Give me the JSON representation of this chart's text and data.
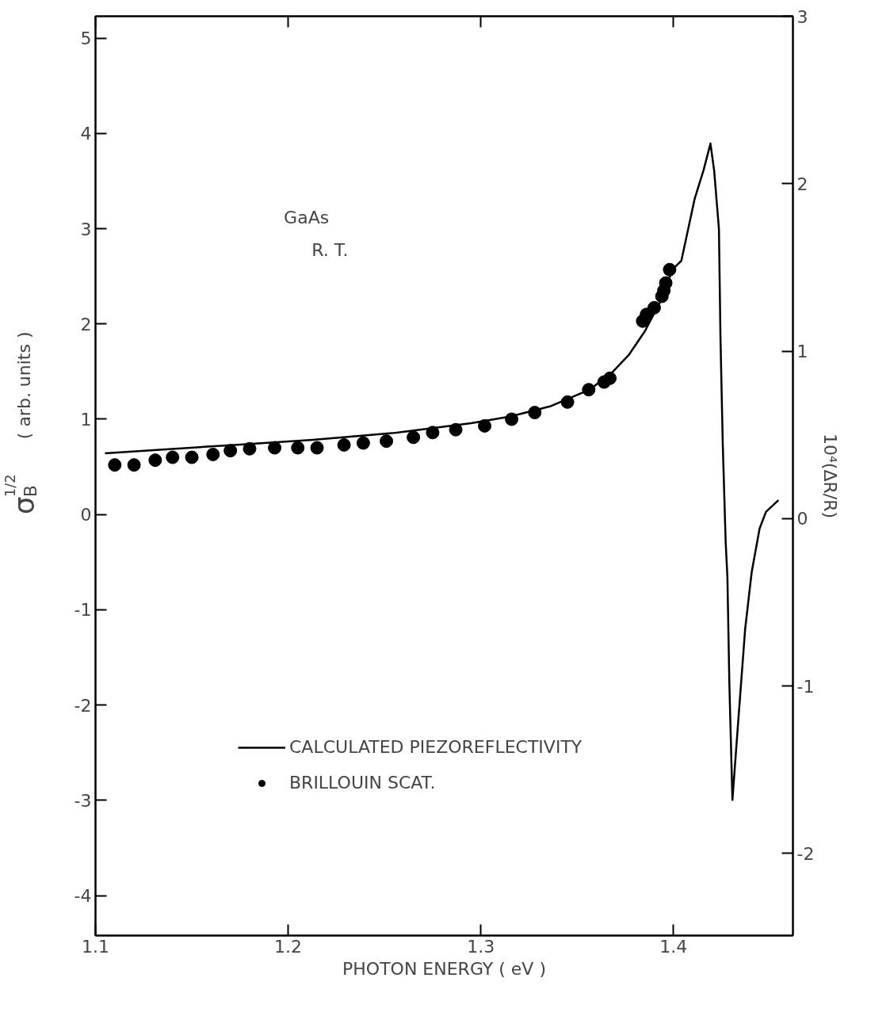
{
  "chart_data": {
    "type": "scatter",
    "xlabel": "PHOTON ENERGY ( eV )",
    "ylabel": "σ$_{B}$$^{1/2}$ ( arb. units )",
    "y2label": "10⁴(ΔR/R)",
    "annotations": [
      "GaAs",
      "R. T."
    ],
    "xlim": [
      1.1,
      1.462
    ],
    "xticks": [
      {
        "value": 1.1,
        "label": "1.1"
      },
      {
        "value": 1.2,
        "label": "1.2"
      },
      {
        "value": 1.3,
        "label": "1.3"
      },
      {
        "value": 1.4,
        "label": "1.4"
      }
    ],
    "ylim": [
      -4.42,
      5.23
    ],
    "yticks": [
      -4,
      -3,
      -2,
      -1,
      0,
      1,
      2,
      3,
      4,
      5
    ],
    "y2lim": [
      -2.49,
      3.0
    ],
    "y2ticks": [
      -2,
      -1,
      0,
      1,
      2,
      3
    ],
    "grid": false,
    "legend": "bottom left",
    "series": [
      {
        "name": "CALCULATED PIEZOREFLECTIVITY",
        "type": "line",
        "axis": "y2",
        "color": "#000000",
        "marker": "none",
        "line_style": "solid",
        "x": [
          1.1049,
          1.1718,
          1.2128,
          1.2539,
          1.2949,
          1.3154,
          1.3359,
          1.3565,
          1.3688,
          1.377,
          1.3852,
          1.3934,
          1.3996,
          1.4041,
          1.411,
          1.4156,
          1.4192,
          1.4211,
          1.4236,
          1.4244,
          1.4256,
          1.4271,
          1.428,
          1.429,
          1.4306,
          1.4331,
          1.4372,
          1.4406,
          1.4447,
          1.448,
          1.4545
        ],
        "values": [
          0.39,
          0.44,
          0.47,
          0.51,
          0.57,
          0.61,
          0.67,
          0.77,
          0.88,
          0.98,
          1.12,
          1.3,
          1.49,
          1.54,
          1.91,
          2.08,
          2.24,
          2.08,
          1.73,
          1.08,
          0.44,
          -0.14,
          -0.35,
          -0.98,
          -1.68,
          -1.29,
          -0.66,
          -0.32,
          -0.06,
          0.04,
          0.11
        ]
      },
      {
        "name": "BRILLOUIN SCAT.",
        "type": "scatter",
        "color": "#000000",
        "marker": "circle",
        "x": [
          1.11,
          1.12,
          1.131,
          1.14,
          1.15,
          1.161,
          1.17,
          1.18,
          1.193,
          1.205,
          1.215,
          1.229,
          1.239,
          1.251,
          1.265,
          1.275,
          1.287,
          1.302,
          1.316,
          1.328,
          1.345,
          1.356,
          1.364,
          1.367,
          1.384,
          1.386,
          1.39,
          1.394,
          1.395,
          1.396,
          1.398
        ],
        "values": [
          0.52,
          0.52,
          0.57,
          0.6,
          0.6,
          0.63,
          0.67,
          0.69,
          0.7,
          0.7,
          0.7,
          0.73,
          0.75,
          0.77,
          0.81,
          0.86,
          0.89,
          0.93,
          1.0,
          1.07,
          1.18,
          1.31,
          1.39,
          1.43,
          2.03,
          2.1,
          2.17,
          2.29,
          2.35,
          2.43,
          2.57
        ]
      }
    ]
  }
}
